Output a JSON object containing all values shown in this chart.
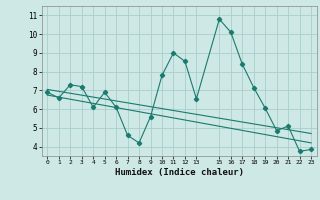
{
  "xlabel": "Humidex (Indice chaleur)",
  "bg_color": "#cde8e5",
  "grid_color": "#a8cecc",
  "line_color": "#1a7a6e",
  "xlim": [
    -0.5,
    23.5
  ],
  "ylim": [
    3.5,
    11.5
  ],
  "xticks": [
    0,
    1,
    2,
    3,
    4,
    5,
    6,
    7,
    8,
    9,
    10,
    11,
    12,
    13,
    15,
    16,
    17,
    18,
    19,
    20,
    21,
    22,
    23
  ],
  "yticks": [
    4,
    5,
    6,
    7,
    8,
    9,
    10,
    11
  ],
  "zigzag_x": [
    0,
    1,
    2,
    3,
    4,
    5,
    6,
    7,
    8,
    9,
    10,
    11,
    12,
    13,
    15,
    16,
    17,
    18,
    19,
    20,
    21,
    22,
    23
  ],
  "zigzag_y": [
    6.9,
    6.6,
    7.3,
    7.2,
    6.1,
    6.9,
    6.1,
    4.6,
    4.2,
    5.6,
    7.8,
    9.0,
    8.55,
    6.55,
    10.8,
    10.1,
    8.4,
    7.15,
    6.05,
    4.85,
    5.1,
    3.75,
    3.85
  ],
  "trend1_x": [
    0,
    23
  ],
  "trend1_y": [
    7.05,
    4.7
  ],
  "trend2_x": [
    0,
    23
  ],
  "trend2_y": [
    6.75,
    4.2
  ]
}
